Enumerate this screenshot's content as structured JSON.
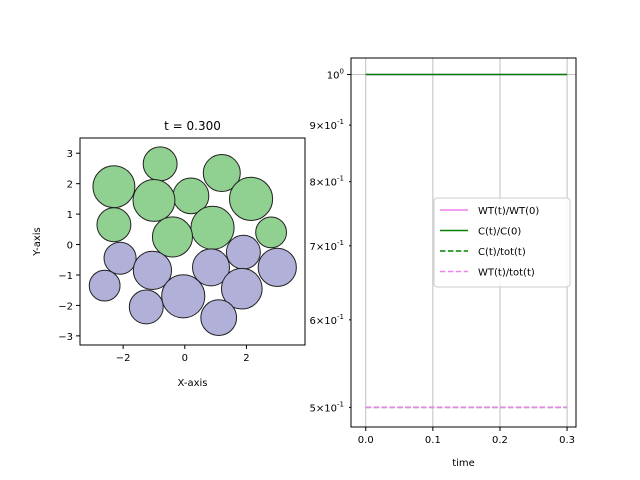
{
  "chart_data": [
    {
      "type": "scatter",
      "title": "t = 0.300",
      "xlabel": "X-axis",
      "ylabel": "Y-axis",
      "xlim": [
        -3.4,
        3.9
      ],
      "ylim": [
        -3.3,
        3.5
      ],
      "xticks": [
        -2,
        0,
        2
      ],
      "xtick_labels": [
        "−2",
        "0",
        "2"
      ],
      "yticks": [
        -3,
        -2,
        -1,
        0,
        1,
        2,
        3
      ],
      "ytick_labels": [
        "−3",
        "−2",
        "−1",
        "0",
        "1",
        "2",
        "3"
      ],
      "aspect": "equal",
      "colors": {
        "group_a": "#90d090",
        "group_b": "#b0b0d8",
        "edge": "#222222"
      },
      "particles": [
        {
          "x": -0.8,
          "y": 2.65,
          "r": 0.55,
          "group": "group_a"
        },
        {
          "x": 1.2,
          "y": 2.35,
          "r": 0.6,
          "group": "group_a"
        },
        {
          "x": -2.3,
          "y": 1.9,
          "r": 0.68,
          "group": "group_a"
        },
        {
          "x": 0.2,
          "y": 1.6,
          "r": 0.58,
          "group": "group_a"
        },
        {
          "x": 2.15,
          "y": 1.5,
          "r": 0.7,
          "group": "group_a"
        },
        {
          "x": -1.0,
          "y": 1.45,
          "r": 0.68,
          "group": "group_a"
        },
        {
          "x": -2.3,
          "y": 0.65,
          "r": 0.55,
          "group": "group_a"
        },
        {
          "x": 0.9,
          "y": 0.55,
          "r": 0.7,
          "group": "group_a"
        },
        {
          "x": 2.8,
          "y": 0.4,
          "r": 0.5,
          "group": "group_a"
        },
        {
          "x": -0.4,
          "y": 0.25,
          "r": 0.65,
          "group": "group_a"
        },
        {
          "x": 1.9,
          "y": -0.25,
          "r": 0.55,
          "group": "group_b"
        },
        {
          "x": -2.1,
          "y": -0.45,
          "r": 0.52,
          "group": "group_b"
        },
        {
          "x": 0.85,
          "y": -0.75,
          "r": 0.6,
          "group": "group_b"
        },
        {
          "x": 3.0,
          "y": -0.75,
          "r": 0.62,
          "group": "group_b"
        },
        {
          "x": -1.05,
          "y": -0.85,
          "r": 0.62,
          "group": "group_b"
        },
        {
          "x": -2.6,
          "y": -1.35,
          "r": 0.5,
          "group": "group_b"
        },
        {
          "x": 1.85,
          "y": -1.45,
          "r": 0.66,
          "group": "group_b"
        },
        {
          "x": -0.05,
          "y": -1.7,
          "r": 0.7,
          "group": "group_b"
        },
        {
          "x": -1.25,
          "y": -2.05,
          "r": 0.55,
          "group": "group_b"
        },
        {
          "x": 1.1,
          "y": -2.4,
          "r": 0.58,
          "group": "group_b"
        }
      ]
    },
    {
      "type": "line",
      "xlabel": "time",
      "ylabel": "",
      "xlim": [
        -0.022,
        0.3133
      ],
      "ylim": [
        0.48,
        1.035
      ],
      "yscale": "log",
      "grid": "x",
      "xticks": [
        0.0,
        0.1,
        0.2,
        0.3
      ],
      "xtick_labels": [
        "0.0",
        "0.1",
        "0.2",
        "0.3"
      ],
      "yticks_major": [
        1.0
      ],
      "ytick_labels_major": [
        "10^0"
      ],
      "yticks_minor": [
        0.5,
        0.6,
        0.7,
        0.8,
        0.9
      ],
      "ytick_labels_minor": [
        "5×10^-1",
        "6×10^-1",
        "7×10^-1",
        "8×10^-1",
        "9×10^-1"
      ],
      "legend_position": "center-right",
      "series": [
        {
          "name": "WT(t)/WT(0)",
          "x": [
            0.0,
            0.3
          ],
          "y": [
            1.0,
            1.0
          ],
          "color": "#ee82ee",
          "style": "solid"
        },
        {
          "name": "C(t)/C(0)",
          "x": [
            0.0,
            0.3
          ],
          "y": [
            1.0,
            1.0
          ],
          "color": "#008000",
          "style": "solid"
        },
        {
          "name": "C(t)/tot(t)",
          "x": [
            0.0,
            0.3
          ],
          "y": [
            0.5,
            0.5
          ],
          "color": "#008000",
          "style": "dashed"
        },
        {
          "name": "WT(t)/tot(t)",
          "x": [
            0.0,
            0.3
          ],
          "y": [
            0.5,
            0.5
          ],
          "color": "#ee82ee",
          "style": "dashed"
        }
      ]
    }
  ]
}
